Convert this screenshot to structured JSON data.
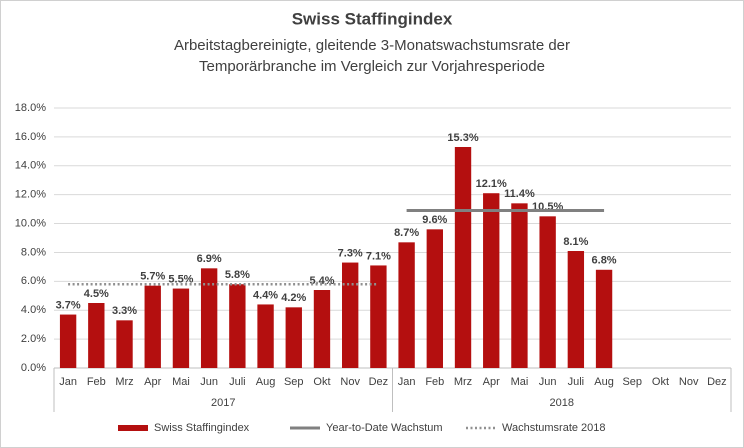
{
  "chart_data": {
    "type": "bar",
    "title": "Swiss Staffingindex",
    "subtitle": [
      "Arbeitstagbereinigte, gleitende 3-Monatswachstumsrate der",
      "Temporärbranche im Vergleich zur Vorjahresperiode"
    ],
    "categories": [
      "Jan",
      "Feb",
      "Mrz",
      "Apr",
      "Mai",
      "Jun",
      "Juli",
      "Aug",
      "Sep",
      "Okt",
      "Nov",
      "Dez",
      "Jan",
      "Feb",
      "Mrz",
      "Apr",
      "Mai",
      "Jun",
      "Juli",
      "Aug",
      "Sep",
      "Okt",
      "Nov",
      "Dez"
    ],
    "x_groups": [
      "2017",
      "2018"
    ],
    "series": [
      {
        "name": "Swiss Staffingindex",
        "color": "#b40f0f",
        "type": "bar",
        "values": [
          3.7,
          4.5,
          3.3,
          5.7,
          5.5,
          6.9,
          5.8,
          4.4,
          4.2,
          5.4,
          7.3,
          7.1,
          8.7,
          9.6,
          15.3,
          12.1,
          11.4,
          10.5,
          8.1,
          6.8,
          null,
          null,
          null,
          null
        ],
        "value_labels": [
          "3.7%",
          "4.5%",
          "3.3%",
          "5.7%",
          "5.5%",
          "6.9%",
          "5.8%",
          "4.4%",
          "4.2%",
          "5.4%",
          "7.3%",
          "7.1%",
          "8.7%",
          "9.6%",
          "15.3%",
          "12.1%",
          "11.4%",
          "10.5%",
          "8.1%",
          "6.8%",
          null,
          null,
          null,
          null
        ]
      },
      {
        "name": "Year-to-Date Wachstum",
        "color": "#808080",
        "type": "line",
        "dash": "solid",
        "values": [
          null,
          null,
          null,
          null,
          null,
          null,
          null,
          null,
          null,
          null,
          null,
          null,
          10.9,
          10.9,
          10.9,
          10.9,
          10.9,
          10.9,
          10.9,
          10.9,
          null,
          null,
          null,
          null
        ]
      },
      {
        "name": "Wachstumsrate 2018",
        "color": "#909090",
        "type": "line",
        "dash": "dotted",
        "values": [
          5.8,
          5.8,
          5.8,
          5.8,
          5.8,
          5.8,
          5.8,
          5.8,
          5.8,
          5.8,
          5.8,
          5.8,
          null,
          null,
          null,
          null,
          null,
          null,
          null,
          null,
          null,
          null,
          null,
          null
        ]
      }
    ],
    "ylim": [
      0,
      18
    ],
    "yticks": [
      {
        "value": 0,
        "label": "0.0%"
      },
      {
        "value": 2,
        "label": "2.0%"
      },
      {
        "value": 4,
        "label": "4.0%"
      },
      {
        "value": 6,
        "label": "6.0%"
      },
      {
        "value": 8,
        "label": "8.0%"
      },
      {
        "value": 10,
        "label": "10.0%"
      },
      {
        "value": 12,
        "label": "12.0%"
      },
      {
        "value": 14,
        "label": "14.0%"
      },
      {
        "value": 16,
        "label": "16.0%"
      },
      {
        "value": 18,
        "label": "18.0%"
      }
    ],
    "grid": true,
    "legend": "bottom"
  }
}
